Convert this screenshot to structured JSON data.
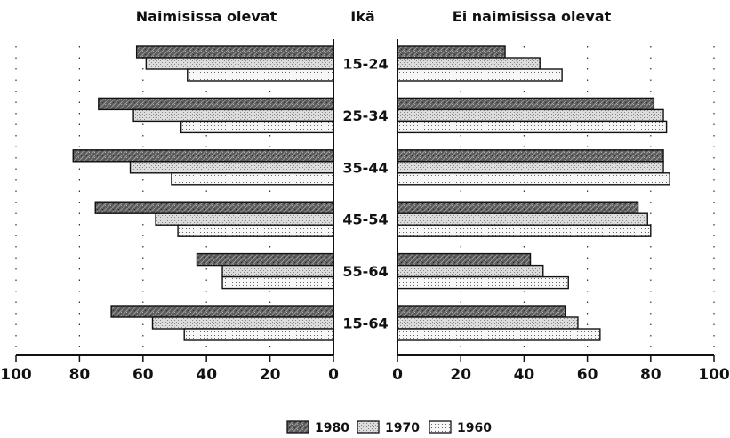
{
  "chart_data": {
    "type": "bar",
    "orientation": "horizontal",
    "layout": "butterfly",
    "center_label": "Ikä",
    "categories": [
      "15-24",
      "25-34",
      "35-44",
      "45-54",
      "55-64",
      "15-64"
    ],
    "xlim": [
      0,
      100
    ],
    "x_ticks": [
      "0",
      "20",
      "40",
      "60",
      "80",
      "100"
    ],
    "grid": "dotted vertical",
    "legend": {
      "position": "bottom-center",
      "entries": [
        {
          "label": "1980",
          "fill": "#5a5a5a"
        },
        {
          "label": "1970",
          "fill": "#d6d6d6"
        },
        {
          "label": "1960",
          "fill": "#f4f4f4"
        }
      ]
    },
    "panels": [
      {
        "title": "Naimisissa olevat",
        "direction": "left",
        "series": [
          {
            "name": "1980",
            "values": [
              62,
              74,
              82,
              75,
              43,
              70
            ]
          },
          {
            "name": "1970",
            "values": [
              59,
              63,
              64,
              56,
              35,
              57
            ]
          },
          {
            "name": "1960",
            "values": [
              46,
              48,
              51,
              49,
              35,
              47
            ]
          }
        ]
      },
      {
        "title": "Ei naimisissa olevat",
        "direction": "right",
        "series": [
          {
            "name": "1980",
            "values": [
              34,
              81,
              84,
              76,
              42,
              53
            ]
          },
          {
            "name": "1970",
            "values": [
              45,
              84,
              84,
              79,
              46,
              57
            ]
          },
          {
            "name": "1960",
            "values": [
              52,
              85,
              86,
              80,
              54,
              64
            ]
          }
        ]
      }
    ]
  }
}
